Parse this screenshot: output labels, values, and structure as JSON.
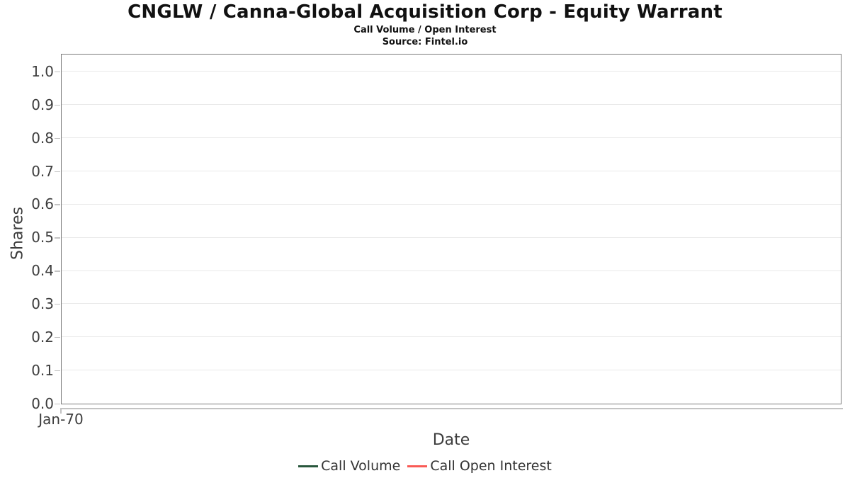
{
  "chart_data": {
    "type": "line",
    "title": "CNGLW / Canna-Global Acquisition Corp - Equity Warrant",
    "subtitle": "Call Volume / Open Interest",
    "source_note": "Source: Fintel.io",
    "xlabel": "Date",
    "ylabel": "Shares",
    "x_ticks": [
      "Jan-70"
    ],
    "y_ticks": [
      "0.0",
      "0.1",
      "0.2",
      "0.3",
      "0.4",
      "0.5",
      "0.6",
      "0.7",
      "0.8",
      "0.9",
      "1.0"
    ],
    "ylim": [
      0,
      1.05
    ],
    "grid": true,
    "legend_position": "bottom",
    "series": [
      {
        "name": "Call Volume",
        "color": "#28573c",
        "x": [],
        "y": []
      },
      {
        "name": "Call Open Interest",
        "color": "#f95a55",
        "x": [],
        "y": []
      }
    ]
  },
  "colors": {
    "background": "#ffffff",
    "plot_border": "#7c7c7c",
    "gridline": "#e9e9e9",
    "axis_line": "#c3c3c3",
    "tick_label": "#3d3d3d",
    "axis_label": "#3d3d3d",
    "legend_text": "#333333",
    "title_text": "#111111"
  }
}
